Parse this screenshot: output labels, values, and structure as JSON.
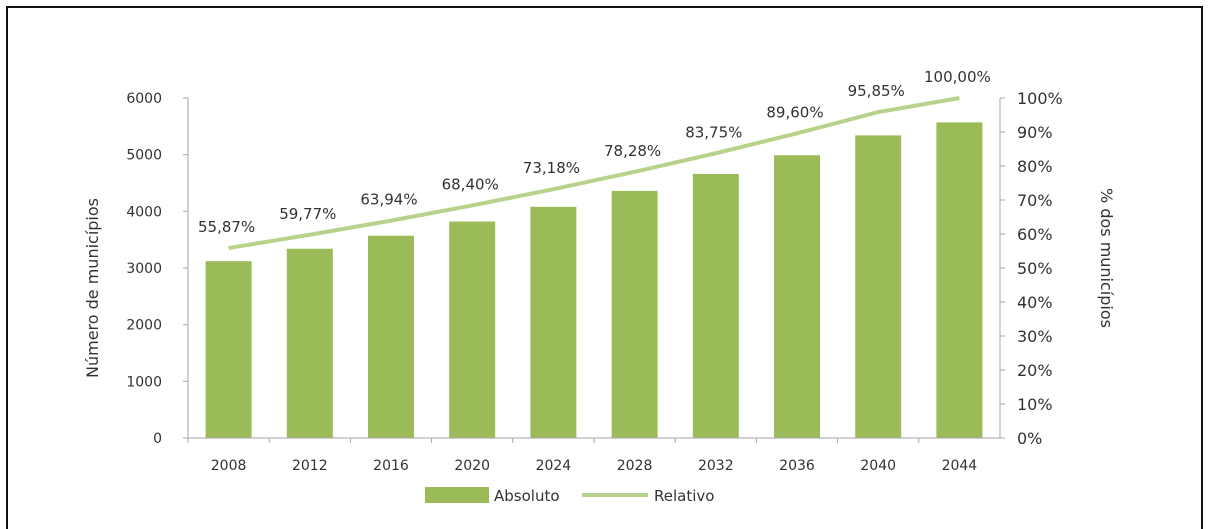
{
  "chart_data": {
    "type": "bar",
    "categories": [
      "2008",
      "2012",
      "2016",
      "2020",
      "2024",
      "2028",
      "2032",
      "2036",
      "2040",
      "2044"
    ],
    "series": [
      {
        "name": "Absoluto",
        "type": "bar",
        "axis": "left",
        "values": [
          3120,
          3340,
          3570,
          3820,
          4080,
          4360,
          4660,
          4990,
          5340,
          5570
        ]
      },
      {
        "name": "Relativo",
        "type": "line",
        "axis": "right",
        "values": [
          55.87,
          59.77,
          63.94,
          68.4,
          73.18,
          78.28,
          83.75,
          89.6,
          95.85,
          100.0
        ],
        "labels": [
          "55,87%",
          "59,77%",
          "63,94%",
          "68,40%",
          "73,18%",
          "78,28%",
          "83,75%",
          "89,60%",
          "95,85%",
          "100,00%"
        ]
      }
    ],
    "ylabel": "Número de municípios",
    "ylabel_right": "% dos municípios",
    "ylim": [
      0,
      6000
    ],
    "ylim_right": [
      0,
      100
    ],
    "yticks": [
      "0",
      "1000",
      "2000",
      "3000",
      "4000",
      "5000",
      "6000"
    ],
    "yticks_right": [
      "0%",
      "10%",
      "20%",
      "30%",
      "40%",
      "50%",
      "60%",
      "70%",
      "80%",
      "90%",
      "100%"
    ],
    "legend": [
      "Absoluto",
      "Relativo"
    ],
    "legend_position": "bottom",
    "grid": false,
    "colors": {
      "bar": "#9bbb59",
      "line": "#b7d38b",
      "axis": "#a6a6a6",
      "text": "#333333"
    }
  }
}
